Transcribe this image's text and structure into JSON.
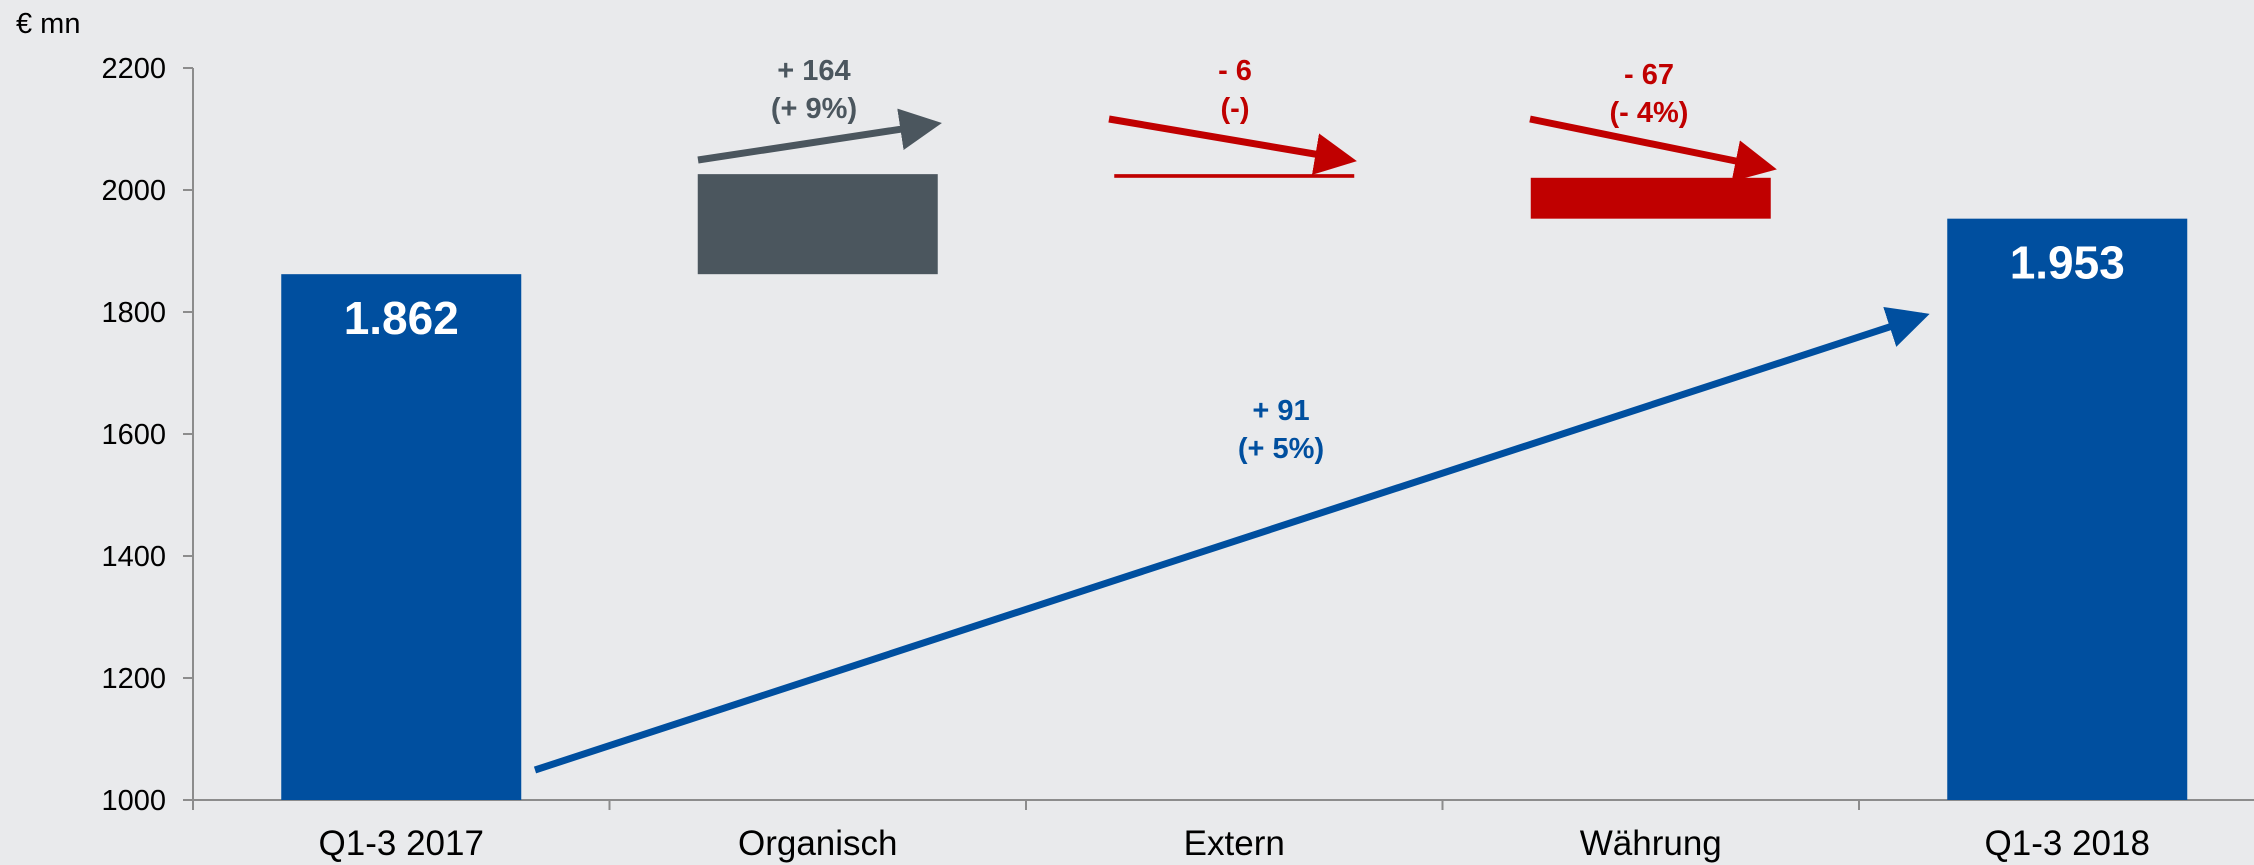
{
  "colors": {
    "background": "#e9eaec",
    "blue": "#004f9f",
    "gray": "#4b565e",
    "red": "#c00000",
    "axis": "#8c8c8c"
  },
  "chart_data": {
    "type": "bar",
    "subtype": "waterfall",
    "unit_label": "€ mn",
    "ylim": [
      1000,
      2200
    ],
    "yticks": [
      1000,
      1200,
      1400,
      1600,
      1800,
      2000,
      2200
    ],
    "categories": [
      "Q1-3 2017",
      "Organisch",
      "Extern",
      "Währung",
      "Q1-3 2018"
    ],
    "bars": [
      {
        "category": "Q1-3 2017",
        "kind": "total",
        "start": 1000,
        "end": 1862,
        "label": "1.862",
        "color": "#004f9f"
      },
      {
        "category": "Organisch",
        "kind": "delta",
        "start": 1862,
        "end": 2026,
        "color": "#4b565e"
      },
      {
        "category": "Extern",
        "kind": "delta",
        "start": 2026,
        "end": 2020,
        "color": "#c00000"
      },
      {
        "category": "Währung",
        "kind": "delta",
        "start": 2020,
        "end": 1953,
        "color": "#c00000"
      },
      {
        "category": "Q1-3 2018",
        "kind": "total",
        "start": 1000,
        "end": 1953,
        "label": "1.953",
        "color": "#004f9f"
      }
    ],
    "annotations": [
      {
        "category": "Organisch",
        "lines": [
          "+ 164",
          "(+ 9%)"
        ],
        "color": "#4b565e"
      },
      {
        "category": "Extern",
        "lines": [
          "- 6",
          "(-)"
        ],
        "color": "#c00000"
      },
      {
        "category": "Währung",
        "lines": [
          "- 67",
          "(- 4%)"
        ],
        "color": "#c00000"
      },
      {
        "category": "overall",
        "lines": [
          "+ 91",
          "(+ 5%)"
        ],
        "color": "#004f9f"
      }
    ],
    "grid": false,
    "legend": "none"
  }
}
